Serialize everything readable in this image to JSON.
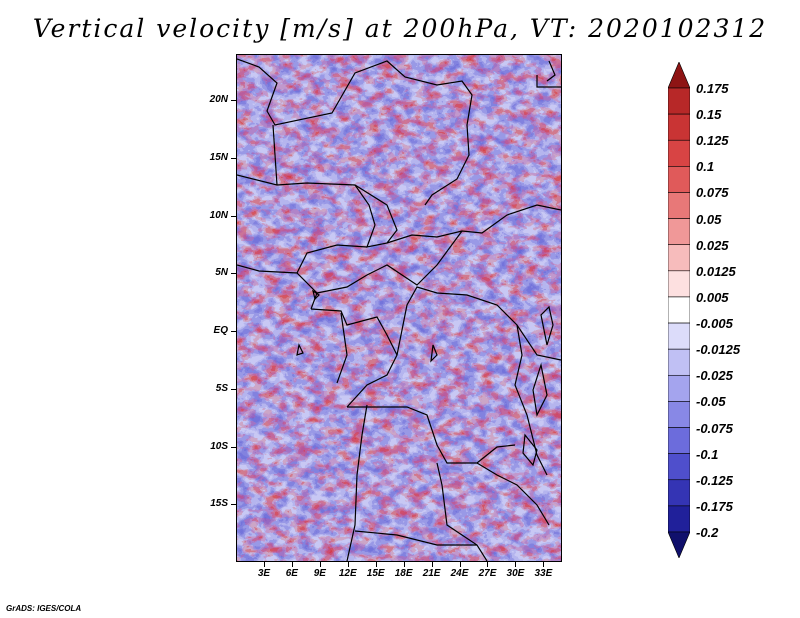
{
  "title": "Vertical velocity [m/s] at 200hPa, VT: 2020102312",
  "footer": "GrADS: IGES/COLA",
  "chart_data": {
    "type": "heatmap",
    "title": "Vertical velocity [m/s] at 200hPa, VT: 2020102312",
    "variable": "Vertical velocity",
    "units": "m/s",
    "level": "200hPa",
    "valid_time": "2020102312",
    "lon_range": [
      0,
      35
    ],
    "lat_range": [
      -20,
      24
    ],
    "y_ticks": [
      {
        "value": 20,
        "label": "20N"
      },
      {
        "value": 15,
        "label": "15N"
      },
      {
        "value": 10,
        "label": "10N"
      },
      {
        "value": 5,
        "label": "5N"
      },
      {
        "value": 0,
        "label": "EQ"
      },
      {
        "value": -5,
        "label": "5S"
      },
      {
        "value": -10,
        "label": "10S"
      },
      {
        "value": -15,
        "label": "15S"
      }
    ],
    "x_ticks": [
      {
        "value": 3,
        "label": "3E"
      },
      {
        "value": 6,
        "label": "6E"
      },
      {
        "value": 9,
        "label": "9E"
      },
      {
        "value": 12,
        "label": "12E"
      },
      {
        "value": 15,
        "label": "15E"
      },
      {
        "value": 18,
        "label": "18E"
      },
      {
        "value": 21,
        "label": "21E"
      },
      {
        "value": 24,
        "label": "24E"
      },
      {
        "value": 27,
        "label": "27E"
      },
      {
        "value": 30,
        "label": "30E"
      },
      {
        "value": 33,
        "label": "33E"
      }
    ],
    "colorbar": {
      "levels": [
        "0.175",
        "0.15",
        "0.125",
        "0.1",
        "0.075",
        "0.05",
        "0.025",
        "0.0125",
        "0.005",
        "-0.005",
        "-0.0125",
        "-0.025",
        "-0.05",
        "-0.075",
        "-0.1",
        "-0.125",
        "-0.175",
        "-0.2"
      ],
      "colors": [
        "#a01c1c",
        "#b72828",
        "#c93434",
        "#d84444",
        "#e05a5a",
        "#e87878",
        "#f09898",
        "#f7bcbc",
        "#fde0e0",
        "#ffffff",
        "#dcdcfa",
        "#c0c0f4",
        "#a4a4ee",
        "#8888e6",
        "#6c6cdc",
        "#4f4fcc",
        "#3434b4",
        "#20209a",
        "#141480"
      ],
      "top_arrow_color": "#8e1414",
      "bottom_arrow_color": "#10106c"
    }
  }
}
